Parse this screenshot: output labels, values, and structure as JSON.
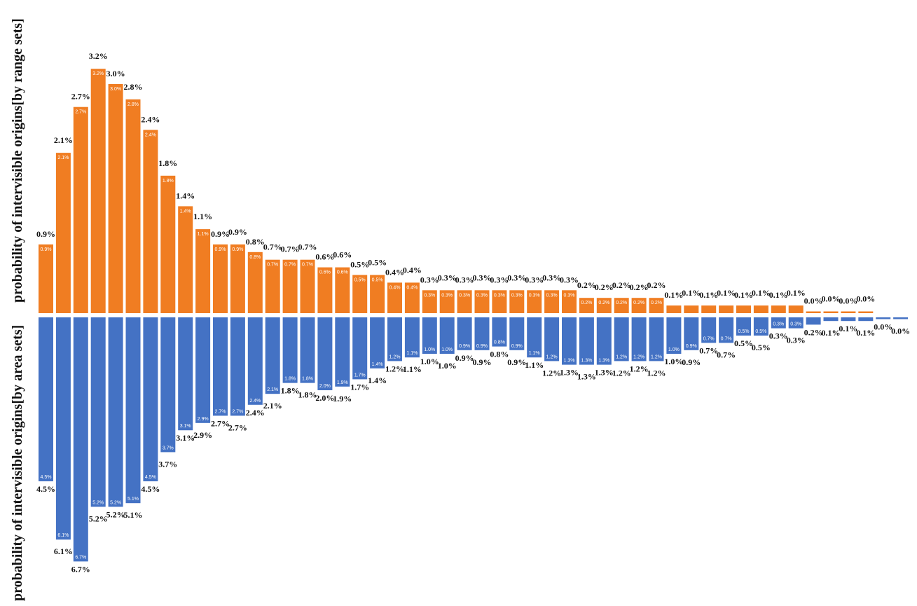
{
  "chart_data": {
    "type": "bar",
    "layout": "diverging",
    "ylabel_top": "probability of intervisible origins[by range sets]",
    "ylabel_bottom": "probability of intervisible origins[by area sets]",
    "series": [
      {
        "name": "by range sets",
        "color": "#F07D22",
        "values": [
          0.9,
          2.1,
          2.7,
          3.2,
          3.0,
          2.8,
          2.4,
          1.8,
          1.4,
          1.1,
          0.9,
          0.9,
          0.8,
          0.7,
          0.7,
          0.7,
          0.6,
          0.6,
          0.5,
          0.5,
          0.4,
          0.4,
          0.3,
          0.3,
          0.3,
          0.3,
          0.3,
          0.3,
          0.3,
          0.3,
          0.3,
          0.2,
          0.2,
          0.2,
          0.2,
          0.2,
          0.1,
          0.1,
          0.1,
          0.1,
          0.1,
          0.1,
          0.1,
          0.1,
          0.0,
          0.0,
          0.0,
          0.0
        ],
        "labels": [
          "0.9%",
          "2.1%",
          "2.7%",
          "3.2%",
          "3.0%",
          "2.8%",
          "2.4%",
          "1.8%",
          "1.4%",
          "1.1%",
          "0.9%",
          "0.9%",
          "0.8%",
          "0.7%",
          "0.7%",
          "0.7%",
          "0.6%",
          "0.6%",
          "0.5%",
          "0.5%",
          "0.4%",
          "0.4%",
          "0.3%",
          "0.3%",
          "0.3%",
          "0.3%",
          "0.3%",
          "0.3%",
          "0.3%",
          "0.3%",
          "0.3%",
          "0.2%",
          "0.2%",
          "0.2%",
          "0.2%",
          "0.2%",
          "0.1%",
          "0.1%",
          "0.1%",
          "0.1%",
          "0.1%",
          "0.1%",
          "0.1%",
          "0.1%",
          "0.0%",
          "0.0%",
          "0.0%",
          "0.0%"
        ]
      },
      {
        "name": "by area sets",
        "color": "#4472C4",
        "values": [
          4.5,
          6.1,
          6.7,
          5.2,
          5.2,
          5.1,
          4.5,
          3.7,
          3.1,
          2.9,
          2.7,
          2.7,
          2.4,
          2.1,
          1.8,
          1.8,
          2.0,
          1.9,
          1.7,
          1.4,
          1.2,
          1.1,
          1.0,
          1.0,
          0.9,
          0.9,
          0.8,
          0.9,
          1.1,
          1.2,
          1.3,
          1.3,
          1.3,
          1.2,
          1.2,
          1.2,
          1.0,
          0.9,
          0.7,
          0.7,
          0.5,
          0.5,
          0.3,
          0.3,
          0.2,
          0.1,
          0.1,
          0.1,
          0.0,
          0.0
        ],
        "labels": [
          "4.5%",
          "6.1%",
          "6.7%",
          "5.2%",
          "5.2%",
          "5.1%",
          "4.5%",
          "3.7%",
          "3.1%",
          "2.9%",
          "2.7%",
          "2.7%",
          "2.4%",
          "2.1%",
          "1.8%",
          "1.8%",
          "2.0%",
          "1.9%",
          "1.7%",
          "1.4%",
          "1.2%",
          "1.1%",
          "1.0%",
          "1.0%",
          "0.9%",
          "0.9%",
          "0.8%",
          "0.9%",
          "1.1%",
          "1.2%",
          "1.3%",
          "1.3%",
          "1.3%",
          "1.2%",
          "1.2%",
          "1.2%",
          "1.0%",
          "0.9%",
          "0.7%",
          "0.7%",
          "0.5%",
          "0.5%",
          "0.3%",
          "0.3%",
          "0.2%",
          "0.1%",
          "0.1%",
          "0.1%",
          "0.0%",
          "0.0%"
        ]
      }
    ],
    "grid": false,
    "legend": "none"
  }
}
